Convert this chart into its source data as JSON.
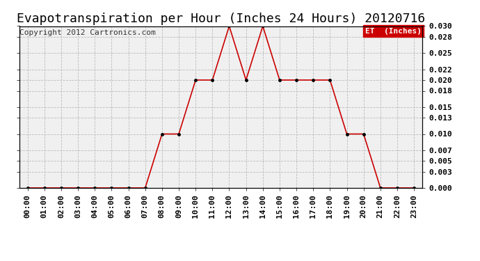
{
  "title": "Evapotranspiration per Hour (Inches 24 Hours) 20120716",
  "copyright": "Copyright 2012 Cartronics.com",
  "legend_label": "ET  (Inches)",
  "legend_bg": "#cc0000",
  "legend_text_color": "#ffffff",
  "hours": [
    "00:00",
    "01:00",
    "02:00",
    "03:00",
    "04:00",
    "05:00",
    "06:00",
    "07:00",
    "08:00",
    "09:00",
    "10:00",
    "11:00",
    "12:00",
    "13:00",
    "14:00",
    "15:00",
    "16:00",
    "17:00",
    "18:00",
    "19:00",
    "20:00",
    "21:00",
    "22:00",
    "23:00"
  ],
  "values": [
    0.0,
    0.0,
    0.0,
    0.0,
    0.0,
    0.0,
    0.0,
    0.0,
    0.01,
    0.01,
    0.02,
    0.02,
    0.03,
    0.02,
    0.03,
    0.02,
    0.02,
    0.02,
    0.02,
    0.01,
    0.01,
    0.0,
    0.0,
    0.0
  ],
  "line_color": "#cc0000",
  "marker_color": "#000000",
  "background_color": "#f0f0f0",
  "grid_color": "#bbbbbb",
  "ylim": [
    0.0,
    0.03
  ],
  "yticks": [
    0.0,
    0.003,
    0.005,
    0.007,
    0.01,
    0.013,
    0.015,
    0.018,
    0.02,
    0.022,
    0.025,
    0.028,
    0.03
  ],
  "title_fontsize": 13,
  "copyright_fontsize": 8,
  "tick_fontsize": 8,
  "ylabel_fontsize": 9,
  "outer_bg": "#ffffff",
  "border_color": "#000000"
}
